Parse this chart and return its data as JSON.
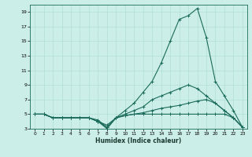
{
  "title": "",
  "xlabel": "Humidex (Indice chaleur)",
  "bg_color": "#cceee8",
  "grid_color": "#b0ddd5",
  "line_color": "#1a6b5a",
  "xlim": [
    -0.5,
    23.5
  ],
  "ylim": [
    3,
    20
  ],
  "xticks": [
    0,
    1,
    2,
    3,
    4,
    5,
    6,
    7,
    8,
    9,
    10,
    11,
    12,
    13,
    14,
    15,
    16,
    17,
    18,
    19,
    20,
    21,
    22,
    23
  ],
  "yticks": [
    3,
    5,
    7,
    9,
    11,
    13,
    15,
    17,
    19
  ],
  "lines": [
    {
      "x": [
        0,
        1,
        2,
        3,
        4,
        5,
        6,
        7,
        8,
        9,
        10,
        11,
        12,
        13,
        14,
        15,
        16,
        17,
        18,
        19,
        20,
        21,
        22,
        23
      ],
      "y": [
        5,
        5,
        4.5,
        4.5,
        4.5,
        4.5,
        4.5,
        4.2,
        3.2,
        4.5,
        4.8,
        5,
        5,
        5,
        5,
        5,
        5,
        5,
        5,
        5,
        5,
        5,
        4.5,
        3.2
      ]
    },
    {
      "x": [
        0,
        1,
        2,
        3,
        4,
        5,
        6,
        7,
        8,
        9,
        10,
        11,
        12,
        13,
        14,
        15,
        16,
        17,
        18,
        19,
        20,
        21,
        22,
        23
      ],
      "y": [
        5,
        5,
        4.5,
        4.5,
        4.5,
        4.5,
        4.5,
        4.0,
        3.5,
        4.5,
        4.8,
        5,
        5.2,
        5.5,
        5.8,
        6,
        6.2,
        6.5,
        6.8,
        7.0,
        6.5,
        5.5,
        4.5,
        3.2
      ]
    },
    {
      "x": [
        0,
        1,
        2,
        3,
        4,
        5,
        6,
        7,
        8,
        9,
        10,
        11,
        12,
        13,
        14,
        15,
        16,
        17,
        18,
        19,
        20,
        21,
        22,
        23
      ],
      "y": [
        5,
        5,
        4.5,
        4.5,
        4.5,
        4.5,
        4.5,
        4.0,
        3.2,
        4.5,
        5,
        5.5,
        6,
        7,
        7.5,
        8,
        8.5,
        9,
        8.5,
        7.5,
        6.5,
        5.5,
        4.5,
        3.2
      ]
    },
    {
      "x": [
        0,
        1,
        2,
        3,
        4,
        5,
        6,
        7,
        8,
        9,
        10,
        11,
        12,
        13,
        14,
        15,
        16,
        17,
        18,
        19,
        20,
        21,
        22,
        23
      ],
      "y": [
        5,
        5,
        4.5,
        4.5,
        4.5,
        4.5,
        4.5,
        4.0,
        3.0,
        4.5,
        5.5,
        6.5,
        8,
        9.5,
        12,
        15,
        18,
        18.5,
        19.5,
        15.5,
        9.5,
        7.5,
        5.5,
        3.2
      ]
    }
  ]
}
